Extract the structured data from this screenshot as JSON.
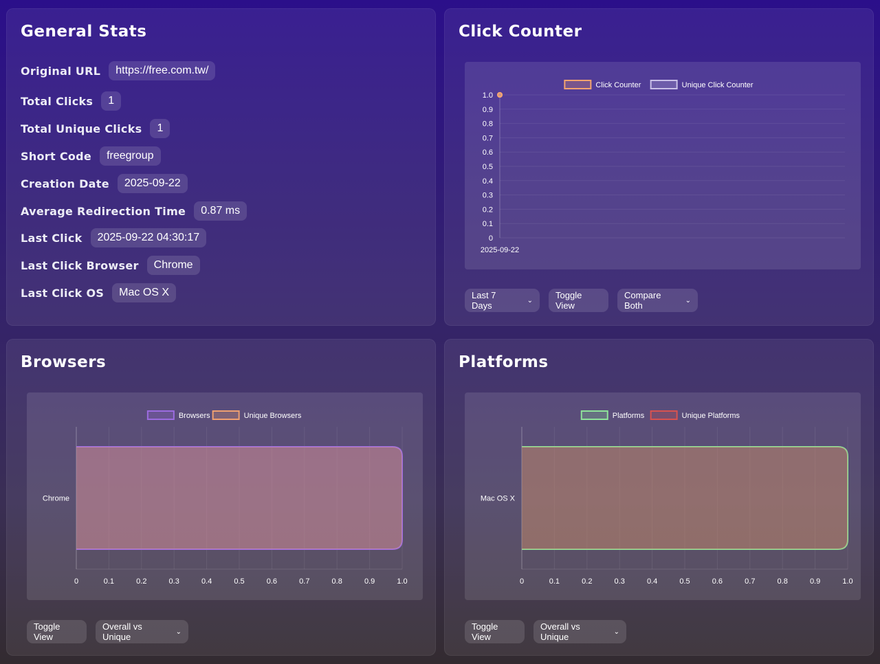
{
  "general": {
    "title": "General Stats",
    "rows": [
      {
        "label": "Original URL",
        "value": "https://free.com.tw/"
      },
      {
        "label": "Total Clicks",
        "value": "1"
      },
      {
        "label": "Total Unique Clicks",
        "value": "1"
      },
      {
        "label": "Short Code",
        "value": "freegroup"
      },
      {
        "label": "Creation Date",
        "value": "2025-09-22"
      },
      {
        "label": "Average Redirection Time",
        "value": "0.87 ms"
      },
      {
        "label": "Last Click",
        "value": "2025-09-22 04:30:17"
      },
      {
        "label": "Last Click Browser",
        "value": "Chrome"
      },
      {
        "label": "Last Click OS",
        "value": "Mac OS X"
      }
    ]
  },
  "click_counter": {
    "title": "Click Counter",
    "range_select": "Last 7 Days",
    "toggle_label": "Toggle View",
    "compare_select": "Compare Both"
  },
  "browsers": {
    "title": "Browsers",
    "toggle_label": "Toggle View",
    "compare_select": "Overall vs Unique"
  },
  "platforms": {
    "title": "Platforms",
    "toggle_label": "Toggle View",
    "compare_select": "Overall vs Unique"
  },
  "chart_data": [
    {
      "type": "line",
      "x": [
        "2025-09-22"
      ],
      "series": [
        {
          "name": "Click Counter",
          "values": [
            1
          ],
          "color": "#f4a46f"
        },
        {
          "name": "Unique Click Counter",
          "values": [
            1
          ],
          "color": "#c9c0e8"
        }
      ],
      "ylim": [
        0,
        1.0
      ],
      "yticks": [
        "0",
        "0.1",
        "0.2",
        "0.3",
        "0.4",
        "0.5",
        "0.6",
        "0.7",
        "0.8",
        "0.9",
        "1.0"
      ],
      "legend": "top"
    },
    {
      "type": "bar",
      "orientation": "horizontal",
      "categories": [
        "Chrome"
      ],
      "series": [
        {
          "name": "Browsers",
          "values": [
            1
          ],
          "color": "#9c6ce0"
        },
        {
          "name": "Unique Browsers",
          "values": [
            1
          ],
          "color": "#f0a070"
        }
      ],
      "xlim": [
        0,
        1.0
      ],
      "xticks": [
        "0",
        "0.1",
        "0.2",
        "0.3",
        "0.4",
        "0.5",
        "0.6",
        "0.7",
        "0.8",
        "0.9",
        "1.0"
      ],
      "legend": "top"
    },
    {
      "type": "bar",
      "orientation": "horizontal",
      "categories": [
        "Mac OS X"
      ],
      "series": [
        {
          "name": "Platforms",
          "values": [
            1
          ],
          "color": "#8ee39a"
        },
        {
          "name": "Unique Platforms",
          "values": [
            1
          ],
          "color": "#d9534f"
        }
      ],
      "xlim": [
        0,
        1.0
      ],
      "xticks": [
        "0",
        "0.1",
        "0.2",
        "0.3",
        "0.4",
        "0.5",
        "0.6",
        "0.7",
        "0.8",
        "0.9",
        "1.0"
      ],
      "legend": "top"
    }
  ]
}
